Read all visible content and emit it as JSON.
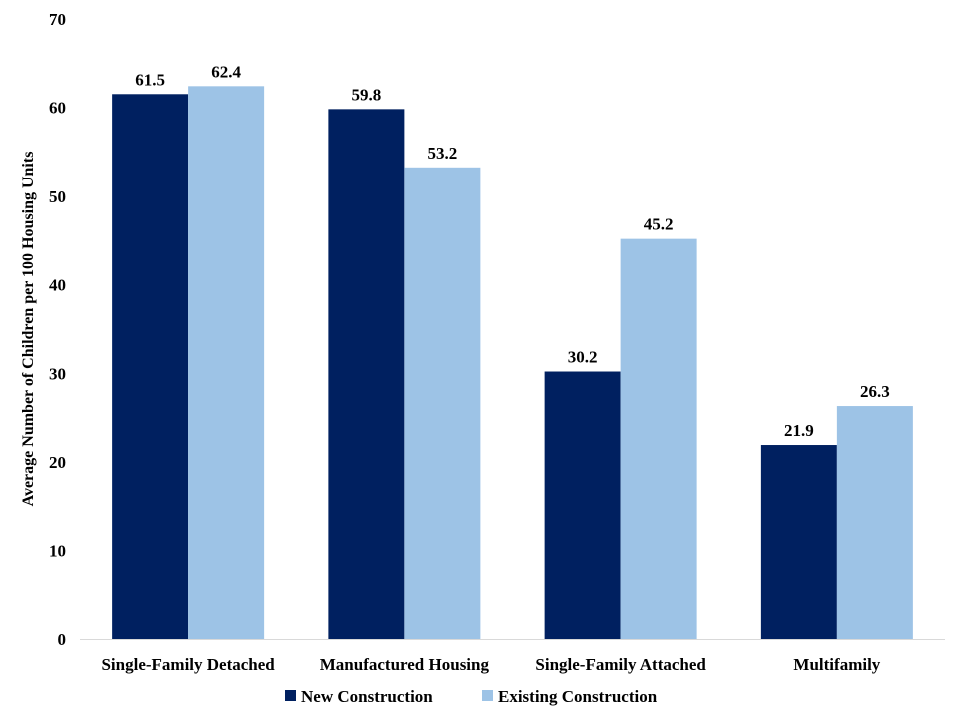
{
  "chart_data": {
    "type": "bar",
    "title": "",
    "xlabel": "",
    "ylabel": "Average Number of Children per 100 Housing Units",
    "categories": [
      "Single-Family Detached",
      "Manufactured Housing",
      "Single-Family Attached",
      "Multifamily"
    ],
    "series": [
      {
        "name": "New Construction",
        "values": [
          61.5,
          59.8,
          30.2,
          21.9
        ],
        "color": "#002060"
      },
      {
        "name": "Existing Construction",
        "values": [
          62.4,
          53.2,
          45.2,
          26.3
        ],
        "color": "#9DC3E6"
      }
    ],
    "ylim": [
      0,
      70
    ],
    "yticks": [
      0,
      10,
      20,
      30,
      40,
      50,
      60,
      70
    ],
    "grid": false,
    "legend_position": "bottom",
    "data_labels": true
  }
}
